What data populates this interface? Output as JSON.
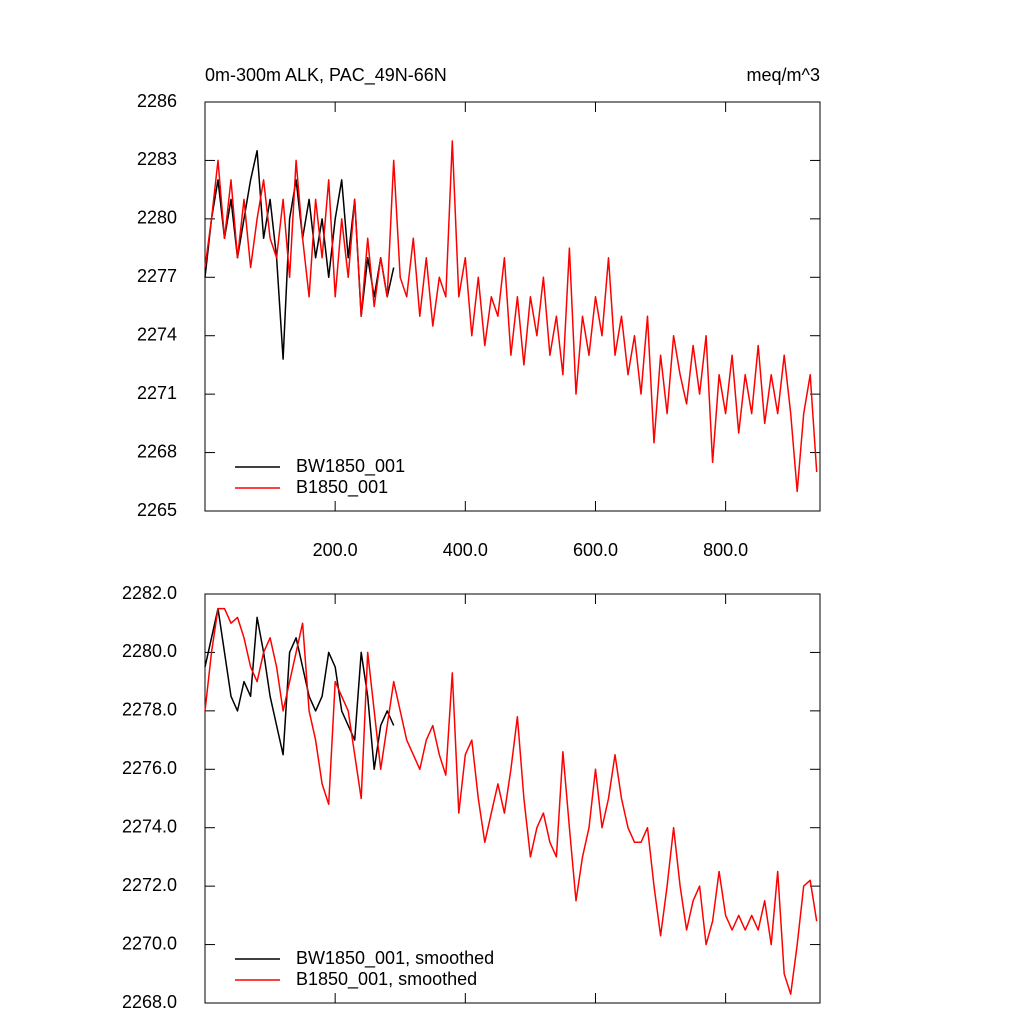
{
  "chart_data": [
    {
      "type": "line",
      "title": "0m-300m ALK, PAC_49N-66N",
      "subtitle": "meq/m^3",
      "xlim": [
        0,
        945
      ],
      "ylim": [
        2265,
        2286
      ],
      "xticks": [
        {
          "value": 200,
          "label": "200.0"
        },
        {
          "value": 400,
          "label": "400.0"
        },
        {
          "value": 600,
          "label": "600.0"
        },
        {
          "value": 800,
          "label": "800.0"
        }
      ],
      "yticks": [
        2265,
        2268,
        2271,
        2274,
        2277,
        2280,
        2283,
        2286
      ],
      "legend": "lower left",
      "series": [
        {
          "name": "BW1850_001",
          "color": "#000000",
          "x": [
            0,
            10,
            20,
            30,
            40,
            50,
            60,
            70,
            80,
            90,
            100,
            110,
            120,
            130,
            140,
            150,
            160,
            170,
            180,
            190,
            200,
            210,
            220,
            230,
            240,
            250,
            260,
            270,
            280,
            290
          ],
          "values": [
            2277,
            2280,
            2282,
            2279,
            2281,
            2278,
            2280,
            2282,
            2283.5,
            2279,
            2281,
            2278,
            2272.8,
            2280,
            2282,
            2279,
            2281,
            2278,
            2280,
            2277,
            2280,
            2282,
            2278,
            2281,
            2275,
            2278,
            2276,
            2278,
            2276,
            2277.5
          ]
        },
        {
          "name": "B1850_001",
          "color": "#ff0000",
          "x": [
            0,
            10,
            20,
            30,
            40,
            50,
            60,
            70,
            80,
            90,
            100,
            110,
            120,
            130,
            140,
            150,
            160,
            170,
            180,
            190,
            200,
            210,
            220,
            230,
            240,
            250,
            260,
            270,
            280,
            290,
            300,
            310,
            320,
            330,
            340,
            350,
            360,
            370,
            380,
            390,
            400,
            410,
            420,
            430,
            440,
            450,
            460,
            470,
            480,
            490,
            500,
            510,
            520,
            530,
            540,
            550,
            560,
            570,
            580,
            590,
            600,
            610,
            620,
            630,
            640,
            650,
            660,
            670,
            680,
            690,
            700,
            710,
            720,
            730,
            740,
            750,
            760,
            770,
            780,
            790,
            800,
            810,
            820,
            830,
            840,
            850,
            860,
            870,
            880,
            890,
            900,
            910,
            920,
            930,
            940
          ],
          "values": [
            2277.5,
            2280,
            2283,
            2279,
            2282,
            2278,
            2281,
            2277.5,
            2280,
            2282,
            2279,
            2278,
            2281,
            2277,
            2283,
            2279,
            2276,
            2281,
            2278,
            2282,
            2276,
            2280,
            2277,
            2281,
            2275,
            2279,
            2275.5,
            2278,
            2276,
            2283,
            2277,
            2276,
            2279,
            2275,
            2278,
            2274.5,
            2277,
            2276,
            2284,
            2276,
            2278,
            2274,
            2277,
            2273.5,
            2276,
            2275,
            2278,
            2273,
            2276,
            2272.5,
            2276,
            2274,
            2277,
            2273,
            2275,
            2272,
            2278.5,
            2271,
            2275,
            2273,
            2276,
            2274,
            2278,
            2273,
            2275,
            2272,
            2274,
            2271,
            2275,
            2268.5,
            2273,
            2270,
            2274,
            2272,
            2270.5,
            2273.5,
            2271,
            2274,
            2267.5,
            2272,
            2270,
            2273,
            2269,
            2272,
            2270,
            2273.5,
            2269.5,
            2272,
            2270,
            2273,
            2270,
            2266,
            2270,
            2272,
            2267
          ]
        }
      ]
    },
    {
      "type": "line",
      "xlim": [
        0,
        945
      ],
      "ylim": [
        2268,
        2282
      ],
      "xticks": [
        200,
        400,
        600,
        800
      ],
      "yticks": [
        {
          "value": 2268,
          "label": "2268.0"
        },
        {
          "value": 2270,
          "label": "2270.0"
        },
        {
          "value": 2272,
          "label": "2272.0"
        },
        {
          "value": 2274,
          "label": "2274.0"
        },
        {
          "value": 2276,
          "label": "2276.0"
        },
        {
          "value": 2278,
          "label": "2278.0"
        },
        {
          "value": 2280,
          "label": "2280.0"
        },
        {
          "value": 2282,
          "label": "2282.0"
        }
      ],
      "legend": "lower left",
      "series": [
        {
          "name": "BW1850_001, smoothed",
          "color": "#000000",
          "x": [
            0,
            10,
            20,
            30,
            40,
            50,
            60,
            70,
            80,
            90,
            100,
            110,
            120,
            130,
            140,
            150,
            160,
            170,
            180,
            190,
            200,
            210,
            220,
            230,
            240,
            250,
            260,
            270,
            280,
            290
          ],
          "values": [
            2279.5,
            2280.5,
            2281.5,
            2280,
            2278.5,
            2278,
            2279,
            2278.5,
            2281.2,
            2280,
            2278.5,
            2277.5,
            2276.5,
            2280,
            2280.5,
            2279.5,
            2278.5,
            2278,
            2278.5,
            2280,
            2279.5,
            2278,
            2277.5,
            2277,
            2280,
            2278.5,
            2276,
            2277.5,
            2278,
            2277.5
          ]
        },
        {
          "name": "B1850_001, smoothed",
          "color": "#ff0000",
          "x": [
            0,
            10,
            20,
            30,
            40,
            50,
            60,
            70,
            80,
            90,
            100,
            110,
            120,
            130,
            140,
            150,
            160,
            170,
            180,
            190,
            200,
            210,
            220,
            230,
            240,
            250,
            260,
            270,
            280,
            290,
            300,
            310,
            320,
            330,
            340,
            350,
            360,
            370,
            380,
            390,
            400,
            410,
            420,
            430,
            440,
            450,
            460,
            470,
            480,
            490,
            500,
            510,
            520,
            530,
            540,
            550,
            560,
            570,
            580,
            590,
            600,
            610,
            620,
            630,
            640,
            650,
            660,
            670,
            680,
            690,
            700,
            710,
            720,
            730,
            740,
            750,
            760,
            770,
            780,
            790,
            800,
            810,
            820,
            830,
            840,
            850,
            860,
            870,
            880,
            890,
            900,
            910,
            920,
            930,
            940
          ],
          "values": [
            2278,
            2280,
            2281.5,
            2281.5,
            2281,
            2281.2,
            2280.5,
            2279.5,
            2279,
            2280,
            2280.5,
            2279.5,
            2278,
            2279,
            2280,
            2281,
            2278,
            2277,
            2275.5,
            2274.8,
            2279,
            2278.5,
            2278,
            2276.5,
            2275,
            2280,
            2278,
            2276,
            2277.5,
            2279,
            2278,
            2277,
            2276.5,
            2276,
            2277,
            2277.5,
            2276.5,
            2275.8,
            2279.3,
            2274.5,
            2276.5,
            2277,
            2275,
            2273.5,
            2274.5,
            2275.5,
            2274.5,
            2276,
            2277.8,
            2275,
            2273,
            2274,
            2274.5,
            2273.5,
            2273,
            2276.6,
            2274,
            2271.5,
            2273,
            2274,
            2276,
            2274,
            2275,
            2276.5,
            2275,
            2274,
            2273.5,
            2273.5,
            2274,
            2272,
            2270.3,
            2272,
            2274,
            2272,
            2270.5,
            2271.5,
            2272,
            2270,
            2270.8,
            2272.5,
            2271,
            2270.5,
            2271,
            2270.5,
            2271,
            2270.5,
            2271.5,
            2270,
            2272.5,
            2269,
            2268.3,
            2270,
            2272,
            2272.2,
            2270.8
          ]
        }
      ]
    }
  ]
}
